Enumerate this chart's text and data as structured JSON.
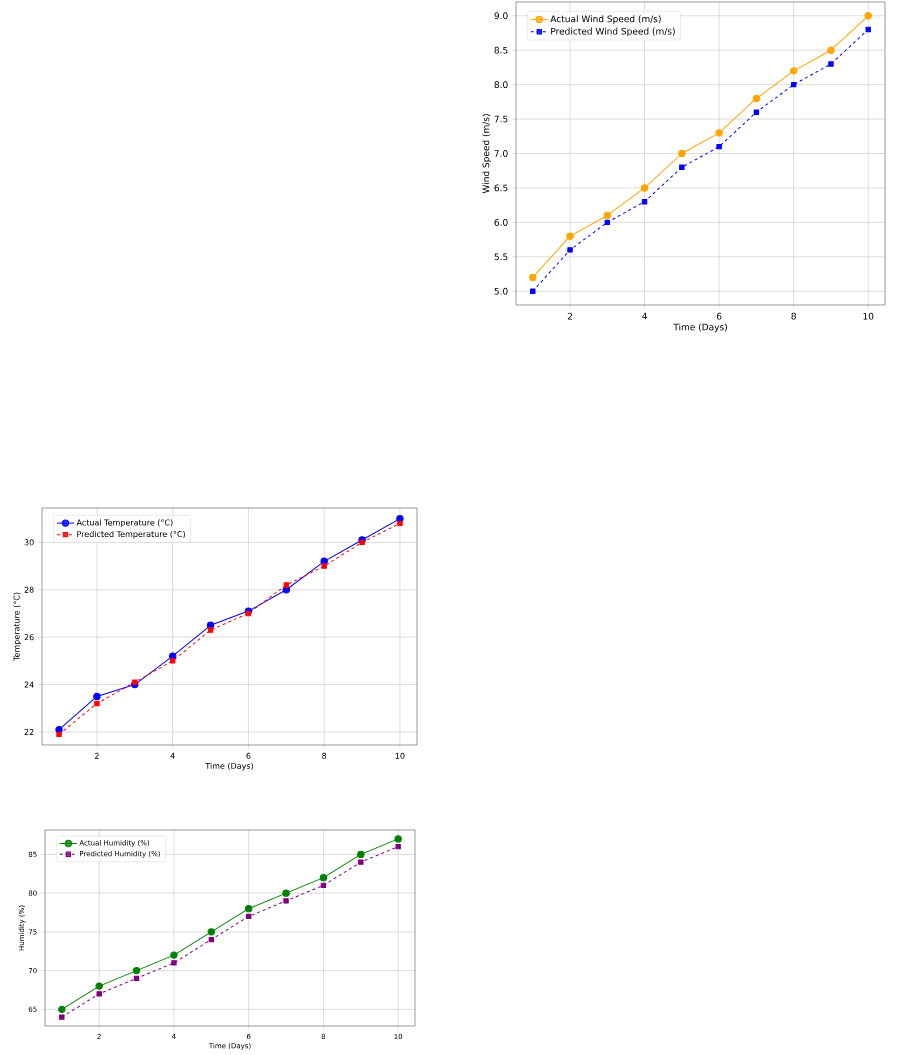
{
  "chart_data": [
    {
      "type": "line",
      "xlabel": "Time (Days)",
      "ylabel": "Wind Speed (m/s)",
      "x": [
        1,
        2,
        3,
        4,
        5,
        6,
        7,
        8,
        9,
        10
      ],
      "series": [
        {
          "name": "Actual Wind Speed (m/s)",
          "color": "#ffa500",
          "marker": "circle",
          "line_style": "solid",
          "values": [
            5.2,
            5.8,
            6.1,
            6.5,
            7.0,
            7.3,
            7.8,
            8.2,
            8.5,
            9.0
          ]
        },
        {
          "name": "Predicted Wind Speed (m/s)",
          "color": "#0000ff",
          "marker": "square",
          "line_style": "dashed",
          "values": [
            5.0,
            5.6,
            6.0,
            6.3,
            6.8,
            7.1,
            7.6,
            8.0,
            8.3,
            8.8
          ]
        }
      ],
      "xlim": [
        0.55,
        10.45
      ],
      "xticks": [
        2,
        4,
        6,
        8,
        10
      ],
      "ylim": [
        4.8,
        9.2
      ],
      "yticks": [
        {
          "value": 5,
          "label": "5.0"
        },
        5.5,
        {
          "value": 6,
          "label": "6.0"
        },
        6.5,
        {
          "value": 7,
          "label": "7.0"
        },
        7.5,
        {
          "value": 8,
          "label": "8.0"
        },
        8.5,
        {
          "value": 9,
          "label": "9.0"
        }
      ],
      "grid": true,
      "legend": "top left"
    },
    {
      "type": "line",
      "xlabel": "Time (Days)",
      "ylabel": "Temperature (°C)",
      "x": [
        1,
        2,
        3,
        4,
        5,
        6,
        7,
        8,
        9,
        10
      ],
      "series": [
        {
          "name": "Actual Temperature (°C)",
          "color": "#0000ff",
          "marker": "circle",
          "line_style": "solid",
          "values": [
            22.1,
            23.5,
            24.0,
            25.2,
            26.5,
            27.1,
            28.0,
            29.2,
            30.1,
            31.0
          ]
        },
        {
          "name": "Predicted Temperature (°C)",
          "color": "#ff0000",
          "marker": "square",
          "line_style": "dashed",
          "values": [
            21.9,
            23.2,
            24.1,
            25.0,
            26.3,
            27.0,
            28.2,
            29.0,
            30.0,
            30.8
          ]
        }
      ],
      "xlim": [
        0.55,
        10.45
      ],
      "xticks": [
        2,
        4,
        6,
        8,
        10
      ],
      "ylim": [
        21.45,
        31.45
      ],
      "yticks": [
        22,
        24,
        26,
        28,
        30
      ],
      "grid": true,
      "legend": "top left"
    },
    {
      "type": "line",
      "xlabel": "Time (Days)",
      "ylabel": "Humidity (%)",
      "x": [
        1,
        2,
        3,
        4,
        5,
        6,
        7,
        8,
        9,
        10
      ],
      "series": [
        {
          "name": "Actual Humidity (%)",
          "color": "#008000",
          "marker": "circle",
          "line_style": "solid",
          "values": [
            65,
            68,
            70,
            72,
            75,
            78,
            80,
            82,
            85,
            87
          ]
        },
        {
          "name": "Predicted Humidity (%)",
          "color": "#800080",
          "marker": "square",
          "line_style": "dashed",
          "values": [
            64,
            67,
            69,
            71,
            74,
            77,
            79,
            81,
            84,
            86
          ]
        }
      ],
      "xlim": [
        0.55,
        10.45
      ],
      "xticks": [
        2,
        4,
        6,
        8,
        10
      ],
      "ylim": [
        62.85,
        88.15
      ],
      "yticks": [
        65,
        70,
        75,
        80,
        85
      ],
      "grid": true,
      "legend": "top left"
    }
  ]
}
